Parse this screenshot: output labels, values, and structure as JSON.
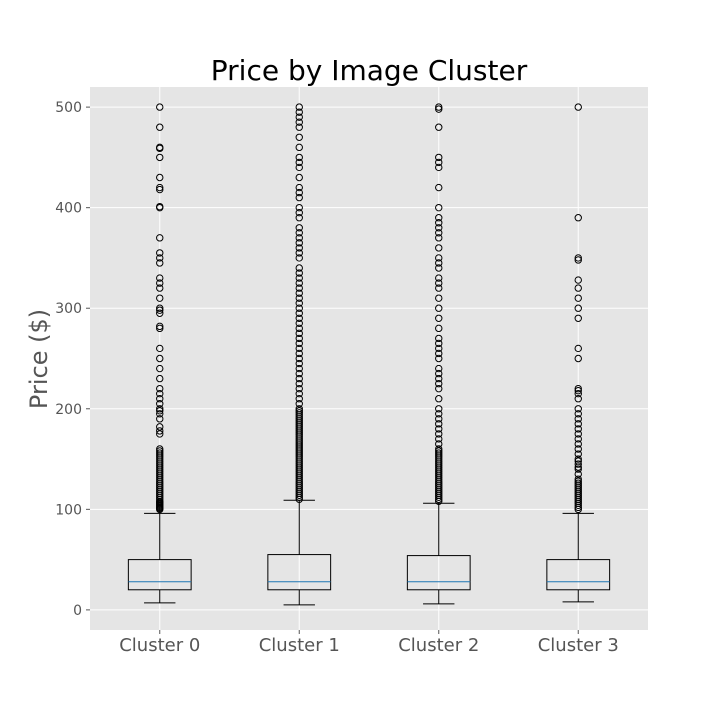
{
  "chart_data": {
    "type": "boxplot",
    "title": "Price by Image Cluster",
    "xlabel": "",
    "ylabel": "Price ($)",
    "ylim": [
      -20,
      520
    ],
    "yticks": [
      0,
      100,
      200,
      300,
      400,
      500
    ],
    "grid": true,
    "categories": [
      "Cluster 0",
      "Cluster 1",
      "Cluster 2",
      "Cluster 3"
    ],
    "boxes": [
      {
        "whisker_low": 7,
        "q1": 20,
        "median": 28,
        "q3": 50,
        "whisker_high": 96,
        "outliers": [
          100,
          101,
          102,
          103,
          104,
          105,
          106,
          107,
          108,
          110,
          112,
          114,
          116,
          118,
          120,
          122,
          124,
          126,
          128,
          130,
          132,
          134,
          136,
          138,
          140,
          142,
          144,
          146,
          148,
          150,
          152,
          154,
          156,
          158,
          160,
          175,
          178,
          182,
          190,
          195,
          198,
          200,
          205,
          210,
          215,
          220,
          230,
          240,
          250,
          260,
          280,
          282,
          295,
          298,
          300,
          310,
          320,
          325,
          330,
          345,
          350,
          355,
          370,
          400,
          401,
          418,
          420,
          430,
          450,
          459,
          460,
          480,
          500
        ]
      },
      {
        "whisker_low": 5,
        "q1": 20,
        "median": 28,
        "q3": 55,
        "whisker_high": 109,
        "outliers": [
          110,
          112,
          114,
          116,
          118,
          120,
          122,
          124,
          126,
          128,
          130,
          132,
          134,
          136,
          138,
          140,
          142,
          144,
          146,
          148,
          150,
          152,
          154,
          156,
          158,
          160,
          162,
          164,
          166,
          168,
          170,
          172,
          174,
          176,
          178,
          180,
          182,
          184,
          186,
          188,
          190,
          192,
          194,
          196,
          198,
          200,
          205,
          210,
          215,
          220,
          225,
          230,
          235,
          240,
          245,
          250,
          255,
          260,
          265,
          270,
          275,
          280,
          285,
          290,
          295,
          300,
          305,
          310,
          315,
          320,
          325,
          330,
          335,
          340,
          350,
          355,
          360,
          365,
          370,
          375,
          380,
          390,
          395,
          400,
          410,
          415,
          420,
          430,
          440,
          445,
          450,
          460,
          470,
          480,
          485,
          490,
          495,
          500
        ]
      },
      {
        "whisker_low": 6,
        "q1": 20,
        "median": 28,
        "q3": 54,
        "whisker_high": 106,
        "outliers": [
          108,
          110,
          112,
          114,
          116,
          118,
          120,
          122,
          124,
          126,
          128,
          130,
          132,
          134,
          136,
          138,
          140,
          142,
          144,
          146,
          148,
          150,
          152,
          154,
          156,
          158,
          160,
          165,
          170,
          175,
          180,
          185,
          190,
          195,
          200,
          210,
          220,
          225,
          230,
          235,
          240,
          250,
          255,
          260,
          265,
          270,
          280,
          290,
          300,
          310,
          320,
          325,
          330,
          340,
          345,
          350,
          360,
          370,
          375,
          380,
          385,
          390,
          400,
          420,
          440,
          445,
          450,
          480,
          498,
          500
        ]
      },
      {
        "whisker_low": 8,
        "q1": 20,
        "median": 28,
        "q3": 50,
        "whisker_high": 96,
        "outliers": [
          100,
          102,
          104,
          106,
          108,
          110,
          112,
          114,
          116,
          118,
          120,
          122,
          124,
          126,
          128,
          130,
          135,
          140,
          142,
          145,
          148,
          150,
          155,
          160,
          165,
          170,
          175,
          180,
          185,
          190,
          195,
          200,
          210,
          215,
          218,
          220,
          250,
          260,
          290,
          300,
          310,
          320,
          328,
          348,
          350,
          390,
          500
        ]
      }
    ]
  }
}
